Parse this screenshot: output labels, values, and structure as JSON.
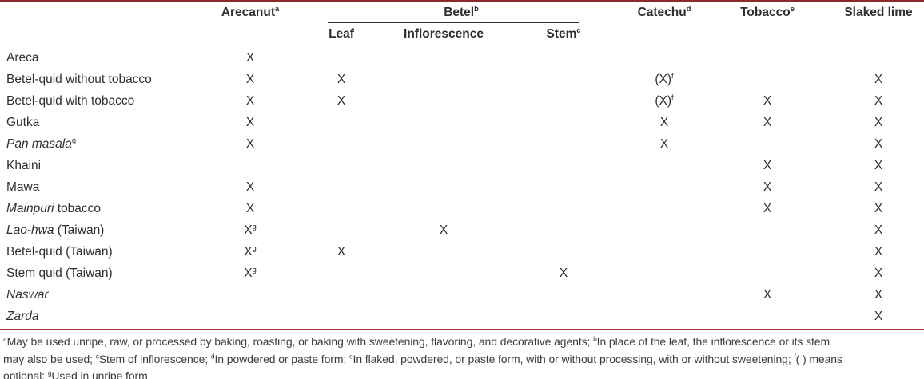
{
  "table": {
    "columns": {
      "row_label": "",
      "arecanut": "Arecanut^a",
      "betel_group": "Betel^b",
      "betel_sub": {
        "leaf": "Leaf",
        "inflorescence": "Inflorescence",
        "stem": "Stem^c"
      },
      "catechu": "Catechu^d",
      "tobacco": "Tobacco^e",
      "slaked_lime": "Slaked lime"
    },
    "mark_symbol": "X",
    "optional_mark_symbol": "(X)^f",
    "rows": [
      {
        "label": "Areca",
        "cells": [
          "X",
          "",
          "",
          "",
          "",
          "",
          ""
        ]
      },
      {
        "label": "Betel-quid without tobacco",
        "cells": [
          "X",
          "X",
          "",
          "",
          "(X)^f",
          "",
          "X"
        ]
      },
      {
        "label": "Betel-quid with tobacco",
        "cells": [
          "X",
          "X",
          "",
          "",
          "(X)^f",
          "X",
          "X"
        ]
      },
      {
        "label": "Gutka",
        "cells": [
          "X",
          "",
          "",
          "",
          "X",
          "X",
          "X"
        ]
      },
      {
        "label": "*Pan masala*^g",
        "cells": [
          "X",
          "",
          "",
          "",
          "X",
          "",
          "X"
        ]
      },
      {
        "label": "Khaini",
        "cells": [
          "",
          "",
          "",
          "",
          "",
          "X",
          "X"
        ]
      },
      {
        "label": "Mawa",
        "cells": [
          "X",
          "",
          "",
          "",
          "",
          "X",
          "X"
        ]
      },
      {
        "label": "*Mainpuri* tobacco",
        "cells": [
          "X",
          "",
          "",
          "",
          "",
          "X",
          "X"
        ]
      },
      {
        "label": "*Lao-hwa* (Taiwan)",
        "cells": [
          "X^g",
          "",
          "X",
          "",
          "",
          "",
          "X"
        ]
      },
      {
        "label": "Betel-quid (Taiwan)",
        "cells": [
          "X^g",
          "X",
          "",
          "",
          "",
          "",
          "X"
        ]
      },
      {
        "label": "Stem quid (Taiwan)",
        "cells": [
          "X^g",
          "",
          "",
          "X",
          "",
          "",
          "X"
        ]
      },
      {
        "label": "*Naswar*",
        "cells": [
          "",
          "",
          "",
          "",
          "",
          "X",
          "X"
        ]
      },
      {
        "label": "*Zarda*",
        "cells": [
          "",
          "",
          "",
          "",
          "",
          "",
          "X"
        ]
      }
    ]
  },
  "footnotes": {
    "lines": [
      "^aMay be used unripe, raw, or processed by baking, roasting, or baking with sweetening, flavoring, and decorative agents; ^bIn place of the leaf, the inflorescence or its stem",
      "may also be used; ^cStem of inflorescence; ^dIn powdered or paste form; ^eIn flaked, powdered, or paste form, with or without processing, with or without sweetening; ^f( ) means",
      "optional; ^gUsed in unripe form"
    ]
  },
  "colors": {
    "top_rule": "#8b2a2e",
    "separator_rule": "#a8373c",
    "text": "#2c2f33"
  }
}
